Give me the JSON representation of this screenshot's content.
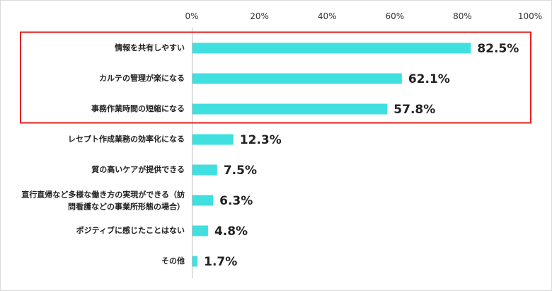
{
  "chart_data": {
    "type": "bar",
    "orientation": "horizontal",
    "categories": [
      [
        "情報を共有しやすい"
      ],
      [
        "カルテの管理が楽になる"
      ],
      [
        "事務作業時間の短縮になる"
      ],
      [
        "レセプト作成業務の効率化になる"
      ],
      [
        "質の高いケアが提供できる"
      ],
      [
        "直行直帰など多様な働き方の実現ができる（訪",
        "問看護などの事業所形態の場合）"
      ],
      [
        "ポジティブに感じたことはない"
      ],
      [
        "その他"
      ]
    ],
    "values": [
      82.5,
      62.1,
      57.8,
      12.3,
      7.5,
      6.3,
      4.8,
      1.7
    ],
    "value_labels": [
      "82.5%",
      "62.1%",
      "57.8%",
      "12.3%",
      "7.5%",
      "6.3%",
      "4.8%",
      "1.7%"
    ],
    "xlim": [
      0,
      100
    ],
    "x_ticks": [
      0,
      20,
      40,
      60,
      80,
      100
    ],
    "x_tick_labels": [
      "0%",
      "20%",
      "40%",
      "60%",
      "80%",
      "100%"
    ],
    "axis_position": "top",
    "grid": false,
    "highlight": {
      "categories": [
        0,
        1,
        2
      ],
      "color": "#e02020"
    },
    "colors": {
      "bar": "#40e0e0",
      "axis": "#bfbfbf",
      "highlight_box": "#e02020"
    }
  }
}
